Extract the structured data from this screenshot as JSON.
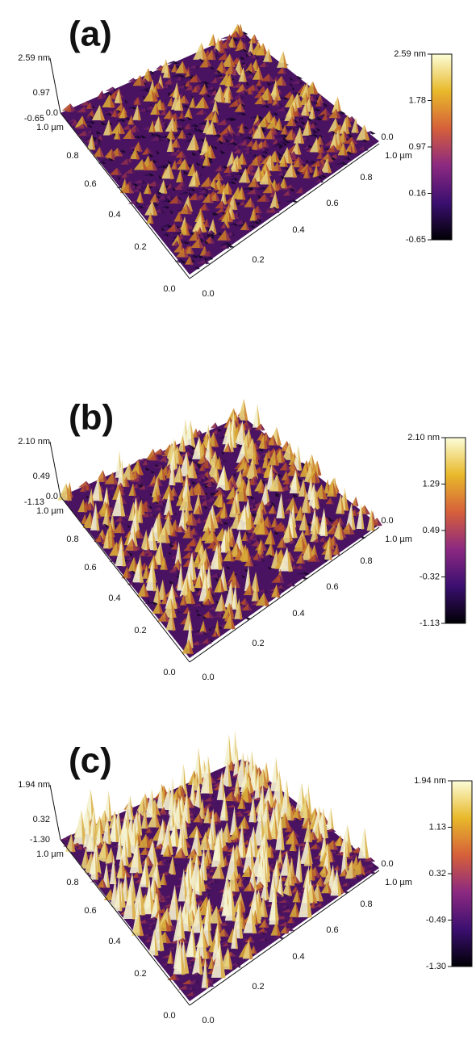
{
  "panels": [
    {
      "label": "(a)",
      "z_axis": [
        "2.59 nm",
        "0.97",
        "0.0",
        "-0.65"
      ],
      "x_axis": [
        "1.0 µm",
        "0.8",
        "0.6",
        "0.4",
        "0.2",
        "0.0"
      ],
      "y_axis": [
        "0.0",
        "0.2",
        "0.4",
        "0.6",
        "0.8",
        "1.0 µm",
        "0.0"
      ],
      "colorbar": [
        "2.59 nm",
        "1.78",
        "0.97",
        "0.16",
        "-0.65"
      ]
    },
    {
      "label": "(b)",
      "z_axis": [
        "2.10 nm",
        "0.49",
        "0.0",
        "-1.13"
      ],
      "x_axis": [
        "1.0 µm",
        "0.8",
        "0.6",
        "0.4",
        "0.2",
        "0.0"
      ],
      "y_axis": [
        "0.0",
        "0.2",
        "0.4",
        "0.6",
        "0.8",
        "1.0 µm",
        "0.0"
      ],
      "colorbar": [
        "2.10 nm",
        "1.29",
        "0.49",
        "-0.32",
        "-1.13"
      ]
    },
    {
      "label": "(c)",
      "z_axis": [
        "1.94 nm",
        "0.32",
        "-1.30"
      ],
      "x_axis": [
        "1.0 µm",
        "0.8",
        "0.6",
        "0.4",
        "0.2",
        "0.0"
      ],
      "y_axis": [
        "0.0",
        "0.2",
        "0.4",
        "0.6",
        "0.8",
        "1.0 µm",
        "0.0"
      ],
      "colorbar": [
        "1.94 nm",
        "1.13",
        "0.32",
        "-0.49",
        "-1.30"
      ]
    }
  ]
}
